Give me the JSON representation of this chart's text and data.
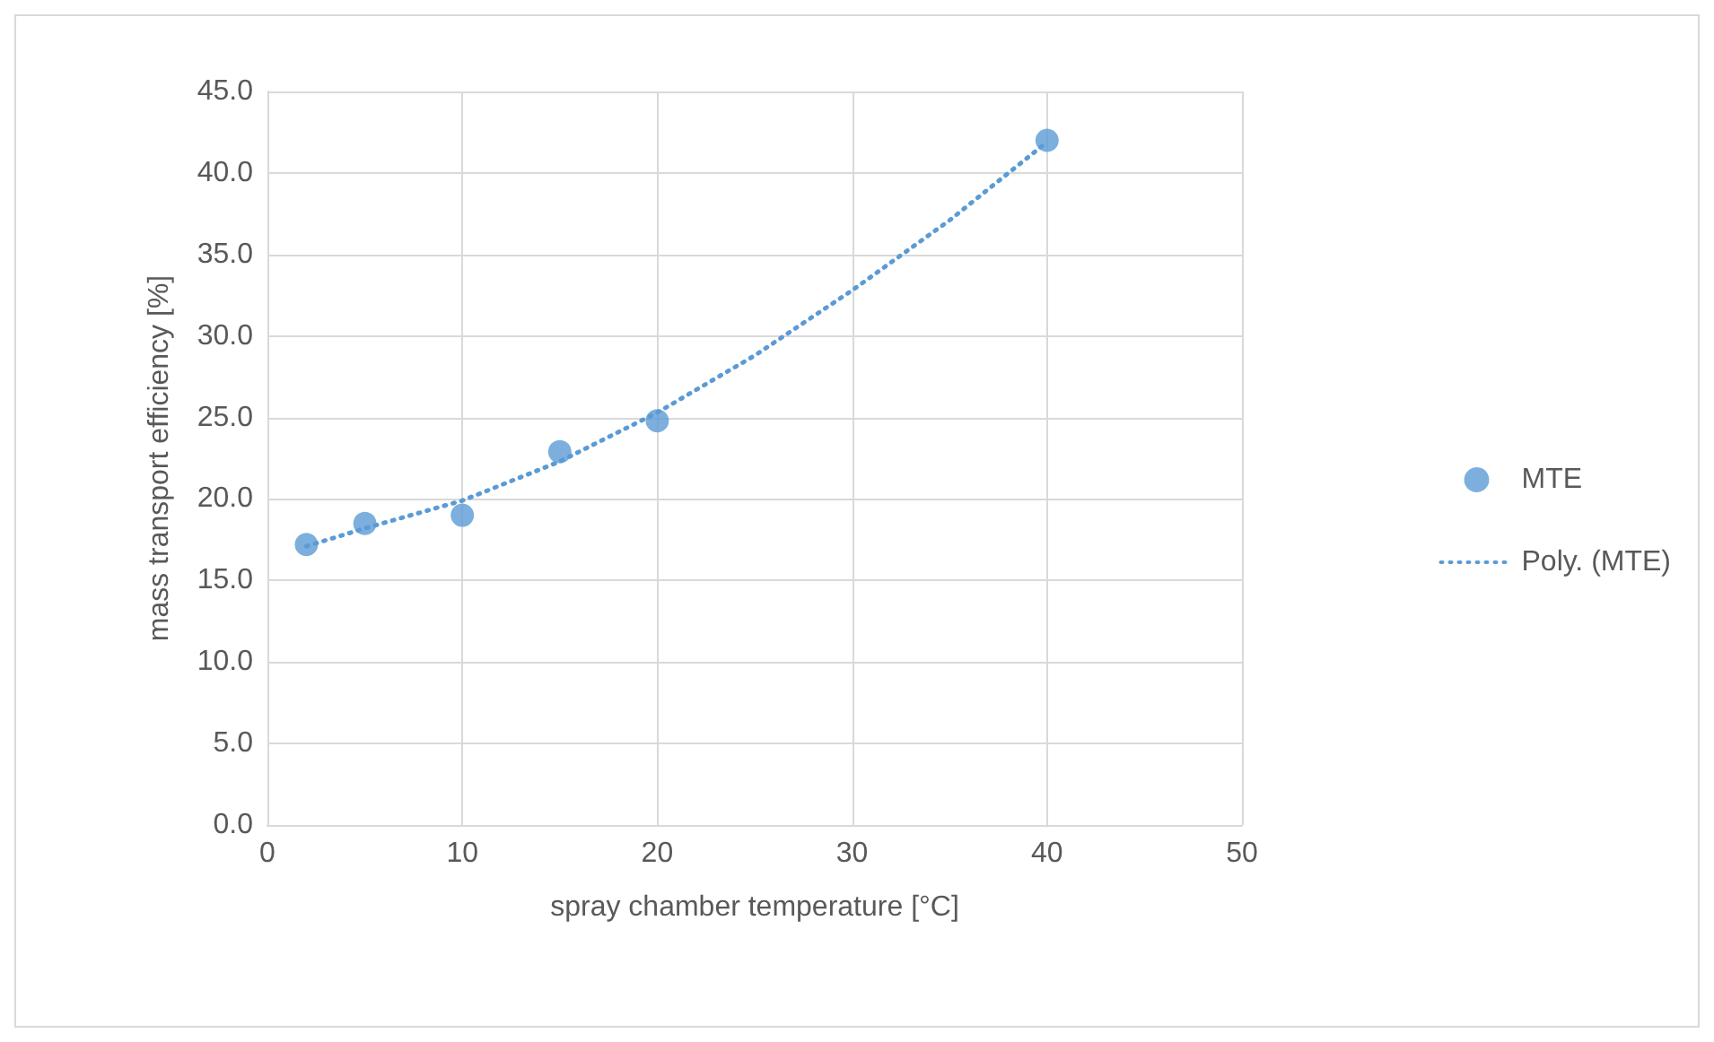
{
  "chart_data": {
    "type": "scatter",
    "xlabel": "spray chamber temperature [°C]",
    "ylabel": "mass transport efficiency [%]",
    "xlim": [
      0,
      50
    ],
    "xticks": [
      0,
      10,
      20,
      30,
      40,
      50
    ],
    "ylim": [
      0,
      45
    ],
    "yticks": [
      {
        "value": 0,
        "label": "0.0"
      },
      {
        "value": 5,
        "label": "5.0"
      },
      {
        "value": 10,
        "label": "10.0"
      },
      {
        "value": 15,
        "label": "15.0"
      },
      {
        "value": 20,
        "label": "20.0"
      },
      {
        "value": 25,
        "label": "25.0"
      },
      {
        "value": 30,
        "label": "30.0"
      },
      {
        "value": 35,
        "label": "35.0"
      },
      {
        "value": 40,
        "label": "40.0"
      },
      {
        "value": 45,
        "label": "45.0"
      }
    ],
    "grid": true,
    "legend": "right",
    "series": [
      {
        "name": "MTE",
        "type": "scatter",
        "marker": "circle",
        "color": "#5b9bd5",
        "x": [
          2,
          5,
          10,
          15,
          20,
          40
        ],
        "values": [
          17.2,
          18.5,
          19.0,
          22.9,
          24.8,
          42.0
        ]
      },
      {
        "name": "Poly. (MTE)",
        "type": "line",
        "marker": "none",
        "line_style": "dotted",
        "color": "#5b9bd5",
        "x": [
          2,
          5,
          10,
          15,
          20,
          25,
          30,
          35,
          40
        ],
        "values": [
          17.1,
          18.2,
          19.9,
          22.3,
          25.3,
          28.8,
          32.8,
          37.1,
          41.9
        ]
      }
    ]
  }
}
